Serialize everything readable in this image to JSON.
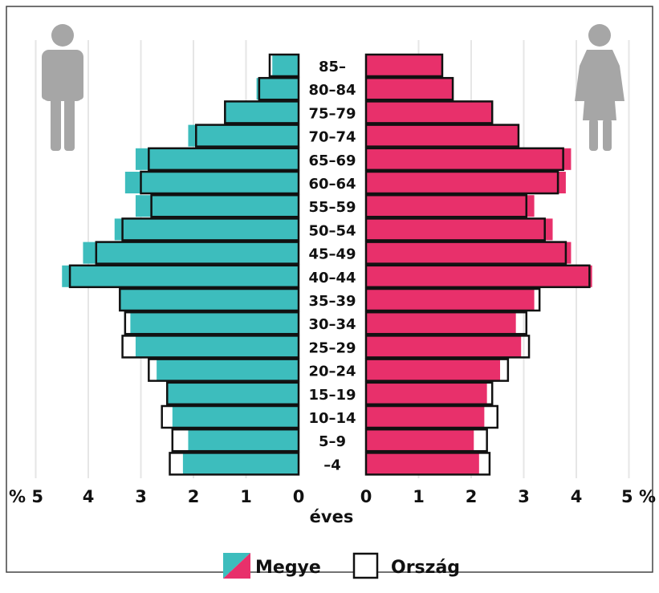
{
  "chart_data": {
    "type": "bar",
    "subtype": "population-pyramid",
    "categories": [
      "85–",
      "80–84",
      "75–79",
      "70–74",
      "65–69",
      "60–64",
      "55–59",
      "50–54",
      "45–49",
      "40–44",
      "35–39",
      "30–34",
      "25–29",
      "20–24",
      "15–19",
      "10–14",
      "5–9",
      "–4"
    ],
    "series": [
      {
        "name": "Megye",
        "side": "left",
        "color": "#3dbdbd",
        "values": [
          0.5,
          0.8,
          1.4,
          2.1,
          3.1,
          3.3,
          3.1,
          3.5,
          4.1,
          4.5,
          3.4,
          3.2,
          3.1,
          2.7,
          2.5,
          2.4,
          2.1,
          2.2
        ]
      },
      {
        "name": "Ország",
        "side": "left",
        "values": [
          0.55,
          0.75,
          1.4,
          1.95,
          2.85,
          3.0,
          2.8,
          3.35,
          3.85,
          4.35,
          3.4,
          3.3,
          3.35,
          2.85,
          2.5,
          2.6,
          2.4,
          2.45
        ]
      },
      {
        "name": "Megye",
        "side": "right",
        "color": "#e8306b",
        "values": [
          1.45,
          1.65,
          2.4,
          2.9,
          3.9,
          3.8,
          3.2,
          3.55,
          3.9,
          4.3,
          3.2,
          2.85,
          2.95,
          2.55,
          2.3,
          2.25,
          2.05,
          2.15
        ]
      },
      {
        "name": "Ország",
        "side": "right",
        "values": [
          1.45,
          1.65,
          2.4,
          2.9,
          3.75,
          3.65,
          3.05,
          3.4,
          3.8,
          4.25,
          3.3,
          3.05,
          3.1,
          2.7,
          2.4,
          2.5,
          2.3,
          2.35
        ]
      }
    ],
    "left_ticks": [
      "% 5",
      "4",
      "3",
      "2",
      "1",
      "0"
    ],
    "right_ticks": [
      "0",
      "1",
      "2",
      "3",
      "4",
      "5 %"
    ],
    "left_tick_values": [
      5,
      4,
      3,
      2,
      1,
      0
    ],
    "right_tick_values": [
      0,
      1,
      2,
      3,
      4,
      5
    ],
    "xlabel": "éves",
    "xlim": [
      0,
      5
    ],
    "grid": true,
    "legend": {
      "position": "bottom",
      "items": [
        "Megye",
        "Ország"
      ]
    },
    "icons": {
      "left": "male-figure-icon",
      "right": "female-figure-icon",
      "icon_color": "#a6a6a6"
    }
  }
}
